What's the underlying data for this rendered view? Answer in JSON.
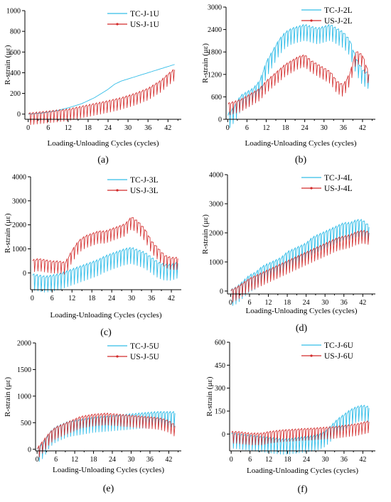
{
  "chart_data": [
    {
      "type": "line",
      "panel_label": "(a)",
      "xlabel": "Loading-Unloading Cycles (cycles)",
      "ylabel": "R-strain (με)",
      "xticks": [
        0,
        6,
        12,
        18,
        24,
        30,
        36,
        42
      ],
      "yticks": [
        0,
        200,
        400,
        600,
        800,
        1000
      ],
      "xlim": [
        -1,
        46
      ],
      "ylim": [
        -50,
        1000
      ],
      "legend_position": "top-right",
      "series": [
        {
          "name": "TC-J-1U",
          "color": "#33bde8",
          "style": "smooth",
          "x": [
            0,
            4,
            8,
            12,
            16,
            20,
            24,
            26,
            28,
            30,
            32,
            34,
            36,
            38,
            40,
            42,
            44
          ],
          "y": [
            0,
            10,
            30,
            60,
            100,
            160,
            240,
            290,
            320,
            340,
            360,
            380,
            400,
            420,
            440,
            460,
            480
          ]
        },
        {
          "name": "US-J-1U",
          "color": "#d22a2a",
          "style": "saw",
          "x": [
            0,
            6,
            12,
            18,
            24,
            28,
            32,
            36,
            38,
            40,
            42,
            44
          ],
          "y": [
            0,
            20,
            40,
            80,
            120,
            150,
            190,
            240,
            280,
            320,
            380,
            430
          ]
        }
      ]
    },
    {
      "type": "line",
      "panel_label": "(b)",
      "xlabel": "Loading-Unloading Cycles (cycles)",
      "ylabel": "R-strain (με)",
      "xticks": [
        0,
        6,
        12,
        18,
        24,
        30,
        36,
        42
      ],
      "yticks": [
        0,
        600,
        1200,
        1800,
        2400,
        3000
      ],
      "xlim": [
        -0.5,
        46
      ],
      "ylim": [
        0,
        3000
      ],
      "legend_position": "top-right",
      "series": [
        {
          "name": "TC-J-2L",
          "color": "#33bde8",
          "style": "saw",
          "x": [
            0,
            2,
            4,
            6,
            8,
            10,
            12,
            14,
            16,
            18,
            20,
            22,
            24,
            26,
            28,
            30,
            32,
            34,
            36,
            38,
            40,
            42,
            44
          ],
          "y": [
            100,
            300,
            600,
            700,
            800,
            1000,
            1500,
            1800,
            2100,
            2300,
            2400,
            2450,
            2500,
            2450,
            2400,
            2450,
            2500,
            2400,
            2300,
            2100,
            1600,
            1300,
            1200
          ]
        },
        {
          "name": "US-J-2L",
          "color": "#d22a2a",
          "style": "saw",
          "x": [
            0,
            2,
            4,
            6,
            8,
            10,
            12,
            14,
            16,
            18,
            20,
            22,
            24,
            26,
            28,
            30,
            32,
            34,
            36,
            38,
            40,
            42,
            44
          ],
          "y": [
            400,
            450,
            500,
            600,
            700,
            800,
            1000,
            1150,
            1300,
            1450,
            1550,
            1650,
            1700,
            1550,
            1450,
            1350,
            1250,
            1000,
            900,
            1200,
            1800,
            1700,
            1200
          ]
        }
      ]
    },
    {
      "type": "line",
      "panel_label": "(c)",
      "xlabel": "Loading-Unloading Cycles (cycles)",
      "ylabel": "R-strain (με)",
      "xticks": [
        0,
        6,
        12,
        18,
        24,
        30,
        36,
        42
      ],
      "yticks": [
        0,
        1000,
        2000,
        3000,
        4000
      ],
      "xlim": [
        -0.5,
        45
      ],
      "ylim": [
        -700,
        4000
      ],
      "legend_position": "top-right",
      "series": [
        {
          "name": "TC-J-3L",
          "color": "#33bde8",
          "style": "saw",
          "x": [
            0,
            2,
            4,
            6,
            8,
            10,
            12,
            14,
            16,
            18,
            20,
            22,
            24,
            26,
            28,
            30,
            32,
            34,
            36,
            38,
            40,
            42,
            44
          ],
          "y": [
            -100,
            -150,
            -200,
            -150,
            -100,
            0,
            100,
            200,
            300,
            400,
            500,
            650,
            750,
            850,
            950,
            1000,
            900,
            800,
            600,
            400,
            300,
            300,
            400
          ]
        },
        {
          "name": "US-J-3L",
          "color": "#d22a2a",
          "style": "saw",
          "x": [
            0,
            2,
            4,
            6,
            8,
            10,
            12,
            14,
            16,
            18,
            20,
            22,
            24,
            26,
            28,
            30,
            32,
            34,
            36,
            38,
            40,
            42,
            44
          ],
          "y": [
            500,
            550,
            500,
            450,
            450,
            400,
            900,
            1300,
            1500,
            1600,
            1700,
            1700,
            1800,
            1900,
            2000,
            2300,
            2100,
            1800,
            1300,
            1000,
            700,
            600,
            600
          ]
        }
      ]
    },
    {
      "type": "line",
      "panel_label": "(d)",
      "xlabel": "Loading-Unloading Cycles (cycles)",
      "ylabel": "R-strain (με)",
      "xticks": [
        0,
        6,
        12,
        18,
        24,
        30,
        36,
        42
      ],
      "yticks": [
        0,
        1000,
        2000,
        3000,
        4000
      ],
      "xlim": [
        -1,
        46
      ],
      "ylim": [
        -100,
        4000
      ],
      "legend_position": "top-right",
      "series": [
        {
          "name": "TC-J-4L",
          "color": "#33bde8",
          "style": "saw",
          "x": [
            0,
            2,
            4,
            6,
            8,
            10,
            12,
            14,
            16,
            18,
            20,
            22,
            24,
            26,
            28,
            30,
            32,
            34,
            36,
            38,
            40,
            42,
            44
          ],
          "y": [
            0,
            100,
            300,
            500,
            600,
            800,
            900,
            1000,
            1100,
            1300,
            1400,
            1500,
            1600,
            1800,
            1900,
            2000,
            2100,
            2200,
            2300,
            2300,
            2400,
            2400,
            2200
          ]
        },
        {
          "name": "US-J-4L",
          "color": "#d22a2a",
          "style": "saw",
          "x": [
            0,
            2,
            4,
            6,
            8,
            10,
            12,
            14,
            16,
            18,
            20,
            22,
            24,
            26,
            28,
            30,
            32,
            34,
            36,
            38,
            40,
            42,
            44
          ],
          "y": [
            0,
            100,
            250,
            400,
            500,
            600,
            700,
            800,
            900,
            1000,
            1100,
            1200,
            1300,
            1400,
            1500,
            1600,
            1700,
            1800,
            1850,
            1900,
            2000,
            2050,
            2000
          ]
        }
      ]
    },
    {
      "type": "line",
      "panel_label": "(e)",
      "xlabel": "Loading-Unloading Cycles (cycles)",
      "ylabel": "R-strain (με)",
      "xticks": [
        0,
        6,
        12,
        18,
        24,
        30,
        36,
        42
      ],
      "yticks": [
        0,
        500,
        1000,
        1500,
        2000
      ],
      "xlim": [
        -0.5,
        46
      ],
      "ylim": [
        -30,
        2000
      ],
      "legend_position": "top-right",
      "series": [
        {
          "name": "TC-J-5U",
          "color": "#33bde8",
          "style": "saw",
          "x": [
            0,
            2,
            4,
            6,
            8,
            10,
            12,
            14,
            16,
            18,
            20,
            22,
            24,
            26,
            28,
            30,
            32,
            34,
            36,
            38,
            40,
            42,
            44
          ],
          "y": [
            0,
            100,
            300,
            400,
            450,
            500,
            520,
            540,
            560,
            580,
            590,
            600,
            610,
            620,
            630,
            640,
            650,
            660,
            670,
            680,
            680,
            680,
            680
          ]
        },
        {
          "name": "US-J-5U",
          "color": "#d22a2a",
          "style": "saw",
          "x": [
            0,
            2,
            4,
            6,
            8,
            10,
            12,
            14,
            16,
            18,
            20,
            22,
            24,
            26,
            28,
            30,
            32,
            34,
            36,
            38,
            40,
            42,
            44
          ],
          "y": [
            0,
            150,
            300,
            400,
            450,
            500,
            550,
            600,
            620,
            640,
            650,
            660,
            650,
            640,
            630,
            620,
            610,
            600,
            590,
            580,
            560,
            520,
            440
          ]
        }
      ]
    },
    {
      "type": "line",
      "panel_label": "(f)",
      "xlabel": "Loading-Unloading Cycles (cycles)",
      "ylabel": "R-strain (με)",
      "xticks": [
        0,
        6,
        12,
        18,
        24,
        30,
        36,
        42
      ],
      "yticks": [
        0,
        150,
        300,
        450,
        600
      ],
      "xlim": [
        -0.5,
        46
      ],
      "ylim": [
        -110,
        600
      ],
      "legend_position": "top-right",
      "series": [
        {
          "name": "TC-J-6U",
          "color": "#33bde8",
          "style": "saw",
          "x": [
            0,
            2,
            4,
            6,
            8,
            10,
            12,
            14,
            16,
            18,
            20,
            22,
            24,
            26,
            28,
            30,
            32,
            34,
            36,
            38,
            40,
            42,
            44
          ],
          "y": [
            0,
            -5,
            -10,
            -15,
            -20,
            -25,
            -30,
            -35,
            -40,
            -40,
            -35,
            -30,
            -25,
            -20,
            -10,
            10,
            50,
            90,
            120,
            150,
            170,
            180,
            170
          ]
        },
        {
          "name": "US-J-6U",
          "color": "#d22a2a",
          "style": "saw",
          "x": [
            0,
            2,
            4,
            6,
            8,
            10,
            12,
            14,
            16,
            18,
            20,
            22,
            24,
            26,
            28,
            30,
            32,
            34,
            36,
            38,
            40,
            42,
            44
          ],
          "y": [
            10,
            10,
            5,
            0,
            0,
            0,
            10,
            15,
            20,
            22,
            25,
            28,
            30,
            32,
            35,
            38,
            40,
            45,
            50,
            55,
            60,
            70,
            80
          ]
        }
      ]
    }
  ]
}
